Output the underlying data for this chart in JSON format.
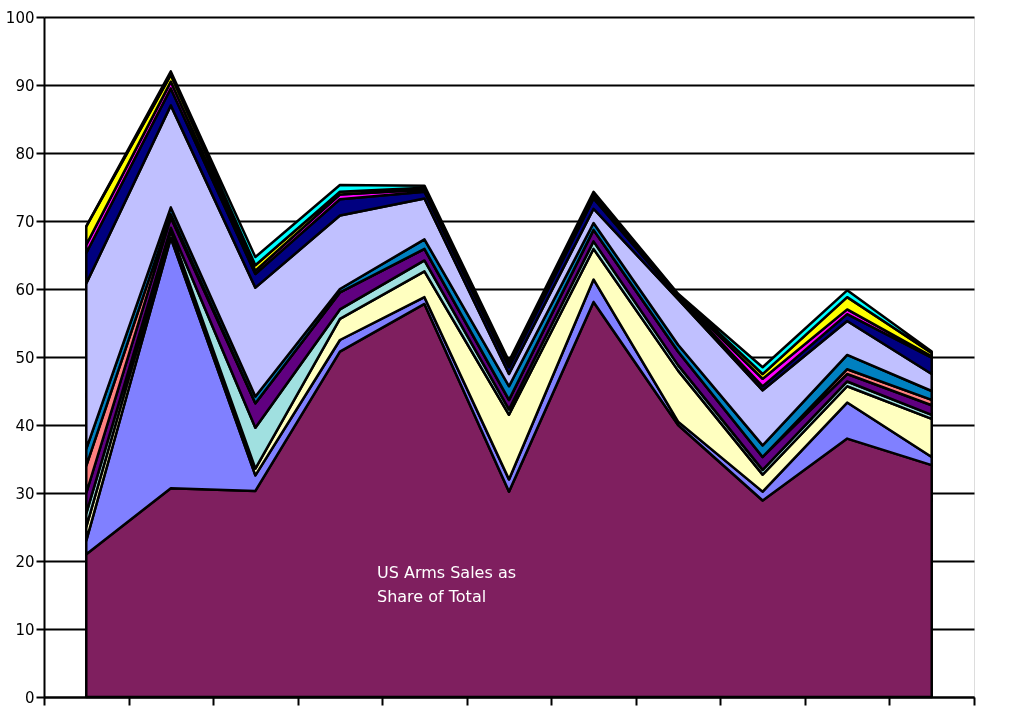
{
  "chart_data": {
    "type": "area",
    "stacked": true,
    "categories": [
      null,
      null,
      null,
      null,
      null,
      null,
      null,
      null,
      null,
      null,
      null
    ],
    "series": [
      {
        "color": "#7f1f5f",
        "values": [
          21,
          30.7,
          30.3,
          50.8,
          57.8,
          30.2,
          58.1,
          40,
          28.9,
          38,
          34.1
        ]
      },
      {
        "color": "#8080ff",
        "values": [
          2,
          36.8,
          2.3,
          1.7,
          1.0,
          1.8,
          3.3,
          0.5,
          1.3,
          5.3,
          1.2
        ]
      },
      {
        "color": "#ffffc0",
        "values": [
          2,
          1,
          1,
          3.1,
          3.8,
          9.5,
          4.5,
          7.5,
          2.5,
          2.4,
          5.6
        ]
      },
      {
        "color": "#a0e0e0",
        "values": [
          2,
          0.5,
          6,
          1.4,
          1.6,
          0.8,
          1.1,
          0.8,
          0.7,
          0.7,
          0.6
        ]
      },
      {
        "color": "#600080",
        "values": [
          3,
          1.5,
          3.6,
          2.5,
          1.7,
          1.4,
          1.7,
          2,
          1.9,
          1.1,
          1.4
        ]
      },
      {
        "color": "#ff8080",
        "values": [
          4,
          0.5,
          0,
          0,
          0,
          0,
          0,
          0,
          0,
          0.7,
          0.8
        ]
      },
      {
        "color": "#0080c0",
        "values": [
          2.5,
          1,
          1,
          0.5,
          1.4,
          2.0,
          1.0,
          1,
          1.7,
          2.1,
          1.3
        ]
      },
      {
        "color": "#c0c0ff",
        "values": [
          24.3,
          15,
          16,
          10.8,
          6.0,
          1.8,
          2.1,
          6.7,
          8.1,
          5.0,
          2.5
        ]
      },
      {
        "color": "#000080",
        "values": [
          4.5,
          2.5,
          2,
          2.4,
          1.0,
          1.0,
          1.5,
          0.3,
          0.6,
          1.0,
          2.4
        ]
      },
      {
        "color": "#ff00ff",
        "values": [
          1.2,
          1,
          0.5,
          0.7,
          0.3,
          0.2,
          0.3,
          0.2,
          1.1,
          0.7,
          0.2
        ]
      },
      {
        "color": "#ffff00",
        "values": [
          2.7,
          1,
          0.8,
          0.4,
          0.3,
          0.5,
          0.4,
          0.2,
          0.7,
          1.8,
          0.5
        ]
      },
      {
        "color": "#00ffff",
        "values": [
          0,
          0.5,
          1.2,
          1.0,
          0.3,
          0.2,
          0.3,
          0.1,
          1.0,
          1.0,
          0.2
        ]
      }
    ],
    "ylim": [
      0,
      100
    ],
    "yticks": [
      0,
      10,
      20,
      30,
      40,
      50,
      60,
      70,
      80,
      90,
      100
    ],
    "grid": "y",
    "tick_labels": "y",
    "annotations": [
      "US Arms Sales as Share of Total"
    ]
  }
}
